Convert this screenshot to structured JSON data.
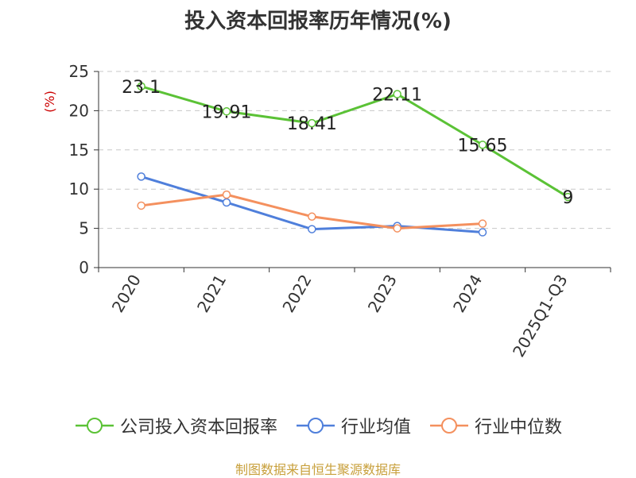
{
  "chart_data": {
    "type": "line",
    "title": "投入资本回报率历年情况(%)",
    "ylabel": "(%)",
    "xlabel": "",
    "categories": [
      "2020",
      "2021",
      "2022",
      "2023",
      "2024",
      "2025Q1-Q3"
    ],
    "yticks": [
      0,
      5,
      10,
      15,
      20,
      25
    ],
    "ylim": [
      0,
      25
    ],
    "grid": true,
    "legend_position": "bottom",
    "series": [
      {
        "name": "公司投入资本回报率",
        "color": "#5bc236",
        "values": [
          23.1,
          19.91,
          18.41,
          22.11,
          15.65,
          9
        ],
        "labels": [
          "23.1",
          "19.91",
          "18.41",
          "22.11",
          "15.65",
          "9"
        ],
        "show_labels": true
      },
      {
        "name": "行业均值",
        "color": "#4f7fdb",
        "values": [
          11.6,
          8.3,
          4.9,
          5.3,
          4.5,
          null
        ],
        "show_labels": false
      },
      {
        "name": "行业中位数",
        "color": "#f4905e",
        "values": [
          7.9,
          9.3,
          6.5,
          5.0,
          5.6,
          null
        ],
        "show_labels": false
      }
    ],
    "source": "制图数据来自恒生聚源数据库"
  }
}
